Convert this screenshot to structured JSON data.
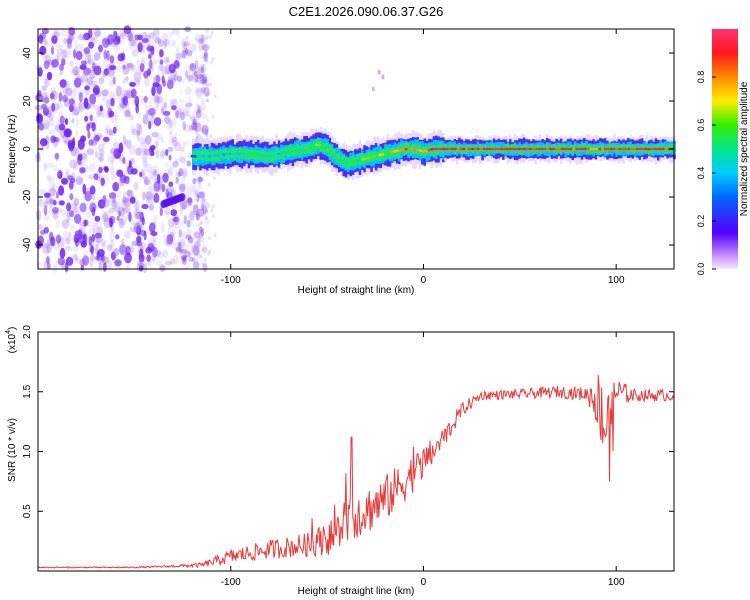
{
  "figure_title": "C2E1.2026.090.06.37.G26",
  "colors": {
    "signal_line": "#e83a3a",
    "axis": "#000000",
    "scatter": "#7a2cf0",
    "background": "#ffffff"
  },
  "chart_data": [
    {
      "type": "heatmap",
      "title": "C2E1.2026.090.06.37.G26",
      "xlabel": "Height of straight line (km)",
      "ylabel": "Frequency (Hz)",
      "xlim": [
        -200,
        130
      ],
      "ylim": [
        -50,
        50
      ],
      "x_ticks": [
        {
          "value": -100,
          "label": "-100"
        },
        {
          "value": 0,
          "label": "0"
        },
        {
          "value": 100,
          "label": "100"
        }
      ],
      "y_ticks": [
        {
          "value": -40,
          "label": "-40"
        },
        {
          "value": -20,
          "label": "-20"
        },
        {
          "value": 0,
          "label": "0"
        },
        {
          "value": 20,
          "label": "20"
        },
        {
          "value": 40,
          "label": "40"
        }
      ],
      "colorbar": {
        "label": "Normalized spectral amplitude",
        "range": [
          0,
          1
        ],
        "ticks": [
          {
            "value": 0.0,
            "label": "0.0"
          },
          {
            "value": 0.2,
            "label": "0.2"
          },
          {
            "value": 0.4,
            "label": "0.4"
          },
          {
            "value": 0.6,
            "label": "0.6"
          },
          {
            "value": 0.8,
            "label": "0.8"
          }
        ]
      },
      "noise_region_x": [
        -200,
        -118
      ],
      "ridge": {
        "x": [
          -120,
          -110,
          -100,
          -90,
          -80,
          -70,
          -60,
          -55,
          -50,
          -45,
          -40,
          -35,
          -30,
          -25,
          -20,
          -15,
          -10,
          -5,
          0,
          5,
          10,
          20,
          40,
          60,
          80,
          90,
          100,
          110,
          130
        ],
        "freq": [
          -3,
          -3,
          -2,
          -2,
          -3,
          -1,
          0,
          2,
          0,
          -4,
          -6,
          -5,
          -4,
          -3,
          -2,
          -1,
          0,
          0,
          -1,
          0,
          0,
          0,
          0,
          0,
          0,
          0,
          0,
          0,
          0
        ],
        "amplitude": [
          0.35,
          0.4,
          0.45,
          0.5,
          0.45,
          0.5,
          0.55,
          0.6,
          0.55,
          0.55,
          0.5,
          0.55,
          0.6,
          0.6,
          0.65,
          0.7,
          0.85,
          0.8,
          0.75,
          0.85,
          0.9,
          0.9,
          0.9,
          0.9,
          0.88,
          0.85,
          0.88,
          0.9,
          0.9
        ]
      },
      "secondary_streak": {
        "x": [
          -135,
          -125
        ],
        "freq": [
          -23,
          -20
        ]
      }
    },
    {
      "type": "line",
      "xlabel": "Height of straight line (km)",
      "ylabel": "SNR (10 * v/v)",
      "y_multiplier_label": "(x10",
      "y_multiplier_exponent": "4",
      "xlim": [
        -200,
        130
      ],
      "ylim": [
        0,
        2.0
      ],
      "x_ticks": [
        {
          "value": -100,
          "label": "-100"
        },
        {
          "value": 0,
          "label": "0"
        },
        {
          "value": 100,
          "label": "100"
        }
      ],
      "y_ticks": [
        {
          "value": 0.5,
          "label": "0.5"
        },
        {
          "value": 1.0,
          "label": "1.0"
        },
        {
          "value": 1.5,
          "label": "1.5"
        },
        {
          "value": 2.0,
          "label": "2.0"
        }
      ],
      "series": [
        {
          "name": "SNR",
          "x": [
            -200,
            -150,
            -130,
            -115,
            -100,
            -80,
            -60,
            -45,
            -40,
            -30,
            -20,
            -10,
            0,
            10,
            20,
            30,
            50,
            70,
            85,
            90,
            95,
            100,
            110,
            130
          ],
          "values": [
            0.03,
            0.03,
            0.04,
            0.05,
            0.12,
            0.18,
            0.22,
            0.3,
            0.45,
            0.5,
            0.6,
            0.75,
            0.9,
            1.1,
            1.35,
            1.47,
            1.48,
            1.5,
            1.48,
            1.45,
            1.2,
            1.5,
            1.47,
            1.47
          ],
          "noise": [
            0.005,
            0.005,
            0.01,
            0.02,
            0.06,
            0.08,
            0.1,
            0.16,
            0.22,
            0.2,
            0.2,
            0.18,
            0.14,
            0.1,
            0.06,
            0.04,
            0.04,
            0.05,
            0.06,
            0.25,
            0.35,
            0.12,
            0.05,
            0.05
          ]
        }
      ]
    }
  ]
}
